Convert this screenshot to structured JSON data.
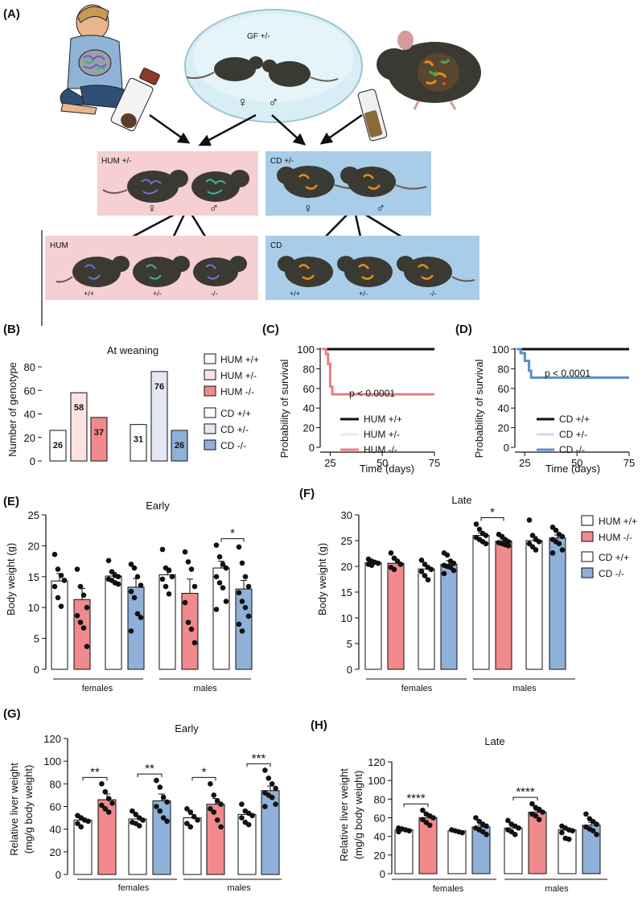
{
  "colors": {
    "hum_pink": "#f5cfd2",
    "hum_bar": "#f08a8c",
    "hum_light": "#fbe3e3",
    "cd_blue": "#a9cce8",
    "cd_bar": "#8fb1d9",
    "cd_light": "#e4e8f4",
    "cd_line": "#5b8fc9",
    "hum_line": "#ec7b7f",
    "ink": "#111111"
  },
  "panel_a": {
    "label": "(A)",
    "gf_label": "GF +/-",
    "female": "♀",
    "male": "♂",
    "hum_parents_label": "HUM +/-",
    "cd_parents_label": "CD +/-",
    "hum_offspring_label": "HUM",
    "cd_offspring_label": "CD",
    "genotypes": [
      "+/+",
      "+/-",
      "-/-"
    ]
  },
  "panel_labels": {
    "b": "(B)",
    "c": "(C)",
    "d": "(D)",
    "e": "(E)",
    "f": "(F)",
    "g": "(G)",
    "h": "(H)"
  },
  "groups": {
    "females": "females",
    "males": "males"
  },
  "legend_b": [
    "HUM +/+",
    "HUM +/-",
    "HUM -/-",
    "CD +/+",
    "CD +/-",
    "CD -/-"
  ],
  "legend_f": [
    "HUM +/+",
    "HUM -/-",
    "CD +/+",
    "CD -/-"
  ],
  "chart_data": [
    {
      "id": "B",
      "type": "bar",
      "title": "At weaning",
      "ylabel": "Number of genotype",
      "ylim": [
        0,
        80
      ],
      "yticks": [
        0,
        20,
        40,
        60,
        80
      ],
      "categories": [
        "HUM +/+",
        "HUM +/-",
        "HUM -/-",
        "CD +/+",
        "CD +/-",
        "CD -/-"
      ],
      "values": [
        26,
        58,
        37,
        31,
        76,
        26
      ],
      "value_labels": [
        "26",
        "58",
        "37",
        "31",
        "76",
        "26"
      ]
    },
    {
      "id": "C",
      "type": "line",
      "xlabel": "Time (days)",
      "ylabel": "Probability of survival",
      "xlim": [
        21,
        75
      ],
      "ylim": [
        0,
        100
      ],
      "xticks": [
        25,
        50,
        75
      ],
      "yticks": [
        0,
        20,
        40,
        60,
        80,
        100
      ],
      "annotation": "p < 0.0001",
      "series": [
        {
          "name": "HUM +/+",
          "x": [
            21,
            75
          ],
          "y": [
            100,
            100
          ]
        },
        {
          "name": "HUM +/-",
          "x": [
            21,
            75
          ],
          "y": [
            100,
            100
          ]
        },
        {
          "name": "HUM -/-",
          "x": [
            21,
            23,
            23,
            24,
            24,
            25,
            25,
            26,
            26,
            75
          ],
          "y": [
            100,
            100,
            95,
            95,
            85,
            85,
            62,
            62,
            54,
            54
          ]
        }
      ]
    },
    {
      "id": "D",
      "type": "line",
      "xlabel": "Time (days)",
      "ylabel": "Probability of survival",
      "xlim": [
        21,
        75
      ],
      "ylim": [
        0,
        100
      ],
      "xticks": [
        25,
        50,
        75
      ],
      "yticks": [
        0,
        20,
        40,
        60,
        80,
        100
      ],
      "annotation": "p < 0.0001",
      "series": [
        {
          "name": "CD +/+",
          "x": [
            21,
            75
          ],
          "y": [
            100,
            100
          ]
        },
        {
          "name": "CD +/-",
          "x": [
            21,
            75
          ],
          "y": [
            100,
            100
          ]
        },
        {
          "name": "CD -/-",
          "x": [
            21,
            23,
            23,
            25,
            25,
            27,
            27,
            28,
            28,
            75
          ],
          "y": [
            100,
            100,
            96,
            96,
            88,
            88,
            78,
            78,
            71,
            71
          ]
        }
      ]
    },
    {
      "id": "E",
      "type": "bar",
      "title": "Early",
      "ylabel": "Body weight (g)",
      "ylim": [
        0,
        25
      ],
      "yticks": [
        0,
        5,
        10,
        15,
        20,
        25
      ],
      "bar_groups": [
        "HUM +/+",
        "HUM -/-",
        "CD +/+",
        "CD -/-",
        "HUM +/+",
        "HUM -/-",
        "CD +/+",
        "CD -/-"
      ],
      "values": [
        14.3,
        11.3,
        15.1,
        13.3,
        15.3,
        12.3,
        16.4,
        13.0
      ],
      "errors": [
        1.2,
        1.8,
        0.6,
        1.4,
        1.1,
        2.3,
        1.1,
        1.4
      ],
      "points": [
        [
          18.6,
          16.2,
          15.2,
          14.4,
          13.4,
          11.6,
          10.2
        ],
        [
          16.2,
          13.4,
          12.0,
          10.0,
          8.7,
          7.6,
          6.7,
          3.7
        ],
        [
          17.6,
          15.8,
          15.2,
          15.0,
          14.6,
          14.4,
          14.0,
          13.8
        ],
        [
          17.0,
          16.4,
          15.0,
          13.6,
          12.6,
          11.6,
          9.0,
          8.4,
          6.2
        ],
        [
          19.4,
          16.4,
          16.0,
          15.0,
          14.6,
          13.4,
          12.2
        ],
        [
          19.0,
          17.4,
          16.2,
          13.4,
          10.8,
          7.6,
          6.5,
          4.3
        ],
        [
          20.1,
          18.2,
          17.0,
          16.4,
          15.0,
          14.0,
          13.2,
          11.0,
          9.7
        ],
        [
          19.8,
          17.2,
          15.0,
          13.4,
          12.4,
          11.0,
          10.0,
          8.6,
          7.3,
          6.2
        ]
      ],
      "significance": [
        {
          "bars": [
            6,
            7
          ],
          "label": "*"
        }
      ]
    },
    {
      "id": "F",
      "type": "bar",
      "title": "Late",
      "ylabel": "Body weight (g)",
      "ylim": [
        0,
        30
      ],
      "yticks": [
        0,
        5,
        10,
        15,
        20,
        25,
        30
      ],
      "bar_groups": [
        "HUM +/+",
        "HUM -/-",
        "CD +/+",
        "CD -/-",
        "HUM +/+",
        "HUM -/-",
        "CD +/+",
        "CD -/-"
      ],
      "values": [
        20.7,
        20.6,
        19.5,
        20.4,
        26.0,
        24.9,
        25.0,
        25.5
      ],
      "errors": [
        0.3,
        0.6,
        0.6,
        0.7,
        0.5,
        0.3,
        0.8,
        0.6
      ],
      "points": [
        [
          21.4,
          21.0,
          20.8,
          20.6,
          20.4,
          20.2
        ],
        [
          22.6,
          21.6,
          21.0,
          20.4,
          19.8,
          19.4
        ],
        [
          21.2,
          20.4,
          19.8,
          19.4,
          19.0,
          18.2,
          17.4
        ],
        [
          22.6,
          22.2,
          21.0,
          20.6,
          20.2,
          20.0,
          19.8,
          19.2,
          18.6
        ],
        [
          28.2,
          27.2,
          26.4,
          26.0,
          25.6,
          25.2,
          24.8,
          24.4
        ],
        [
          26.2,
          25.8,
          25.2,
          24.8,
          24.6,
          24.4,
          24.2,
          24.0
        ],
        [
          29.0,
          26.0,
          25.2,
          24.8,
          24.4,
          23.8,
          23.2
        ],
        [
          27.6,
          27.0,
          26.2,
          25.8,
          25.2,
          24.8,
          24.4,
          23.2,
          22.6
        ]
      ],
      "significance": [
        {
          "bars": [
            4,
            5
          ],
          "label": "*"
        }
      ]
    },
    {
      "id": "G",
      "type": "bar",
      "title": "Early",
      "ylabel": "Relative liver weight (mg/g body weight)",
      "ylim": [
        0,
        120
      ],
      "yticks": [
        0,
        20,
        40,
        60,
        80,
        100,
        120
      ],
      "bar_groups": [
        "HUM +/+",
        "HUM -/-",
        "CD +/+",
        "CD -/-",
        "HUM +/+",
        "HUM -/-",
        "CD +/+",
        "CD -/-"
      ],
      "values": [
        48,
        66,
        49,
        65,
        50,
        62,
        53,
        74
      ],
      "errors": [
        2,
        5,
        2,
        6,
        3,
        5,
        2,
        4
      ],
      "points": [
        [
          52,
          50,
          48,
          47,
          45,
          42
        ],
        [
          80,
          73,
          67,
          63,
          61,
          58,
          55
        ],
        [
          56,
          53,
          50,
          48,
          46,
          45,
          43
        ],
        [
          83,
          77,
          68,
          64,
          60,
          56,
          50,
          47
        ],
        [
          58,
          55,
          51,
          48,
          45,
          42
        ],
        [
          80,
          70,
          65,
          62,
          58,
          55,
          48,
          42
        ],
        [
          62,
          56,
          54,
          52,
          50,
          46,
          44
        ],
        [
          92,
          85,
          80,
          76,
          72,
          70,
          68,
          62,
          60
        ]
      ],
      "significance": [
        {
          "bars": [
            0,
            1
          ],
          "label": "**"
        },
        {
          "bars": [
            2,
            3
          ],
          "label": "**"
        },
        {
          "bars": [
            4,
            5
          ],
          "label": "*"
        },
        {
          "bars": [
            6,
            7
          ],
          "label": "***"
        }
      ]
    },
    {
      "id": "H",
      "type": "bar",
      "title": "Late",
      "ylabel": "Relative liver weight (mg/g body weight)",
      "ylim": [
        0,
        120
      ],
      "yticks": [
        0,
        20,
        40,
        60,
        80,
        100,
        120
      ],
      "bar_groups": [
        "HUM +/+",
        "HUM -/-",
        "CD +/+",
        "CD -/-",
        "HUM +/+",
        "HUM -/-",
        "CD +/+",
        "CD -/-"
      ],
      "values": [
        47,
        60,
        46,
        50,
        49,
        66,
        47,
        52
      ],
      "errors": [
        1,
        2,
        1,
        2,
        2,
        2,
        2,
        3
      ],
      "points": [
        [
          49,
          48,
          47,
          46,
          45
        ],
        [
          68,
          64,
          62,
          60,
          58,
          55,
          52
        ],
        [
          47,
          46,
          45,
          44
        ],
        [
          60,
          56,
          53,
          51,
          49,
          47,
          45,
          42
        ],
        [
          57,
          53,
          51,
          49,
          47,
          45,
          42
        ],
        [
          75,
          71,
          69,
          66,
          64,
          62,
          58
        ],
        [
          51,
          49,
          47,
          46,
          44,
          38,
          37
        ],
        [
          64,
          59,
          56,
          53,
          50,
          48,
          46,
          42
        ]
      ],
      "significance": [
        {
          "bars": [
            0,
            1
          ],
          "label": "****"
        },
        {
          "bars": [
            4,
            5
          ],
          "label": "****"
        }
      ]
    }
  ]
}
